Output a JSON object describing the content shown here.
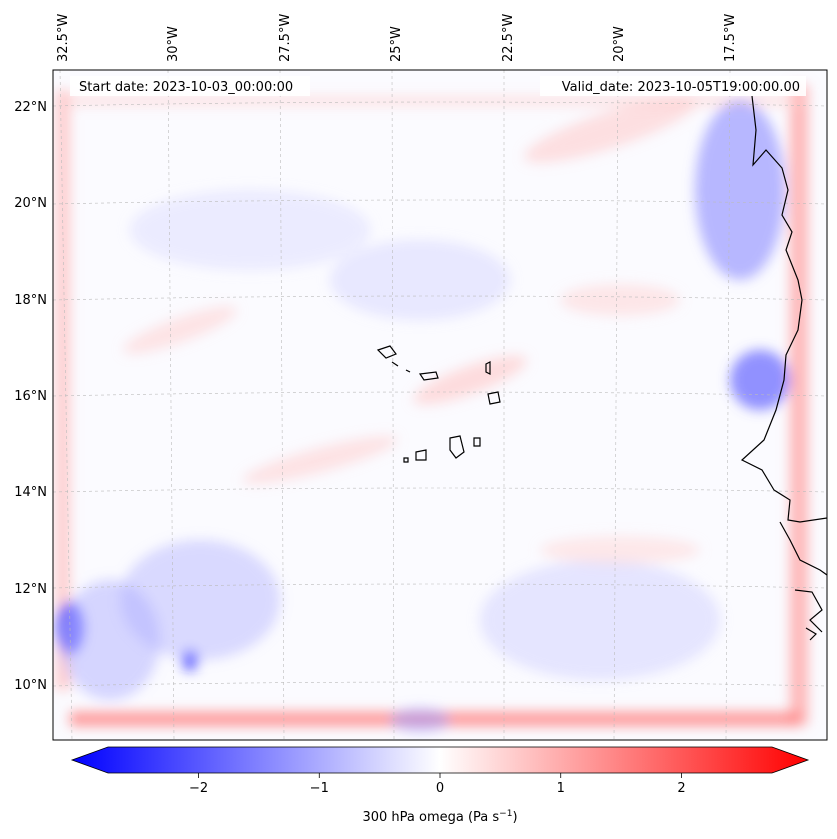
{
  "map": {
    "start_date": "Start date: 2023-10-03_00:00:00",
    "valid_date": "Valid_date: 2023-10-05T19:00:00.00",
    "lon_labels": [
      "32.5°W",
      "30°W",
      "27.5°W",
      "25°W",
      "22.5°W",
      "20°W",
      "17.5°W"
    ],
    "lat_labels": [
      "22°N",
      "20°N",
      "18°N",
      "16°N",
      "14°N",
      "12°N",
      "10°N"
    ],
    "field": "300 hPa omega",
    "colors": {
      "negative": "#0000ff",
      "zero": "#ffffff",
      "positive": "#ff0000"
    }
  },
  "colorbar": {
    "label": "300 hPa omega (Pa s",
    "label_sup": "−1",
    "label_close": ")",
    "ticks": [
      "−2",
      "−1",
      "0",
      "1",
      "2"
    ],
    "tick_values": [
      -2,
      -1,
      0,
      1,
      2
    ],
    "vmin": -2.5,
    "vmax": 2.5
  }
}
